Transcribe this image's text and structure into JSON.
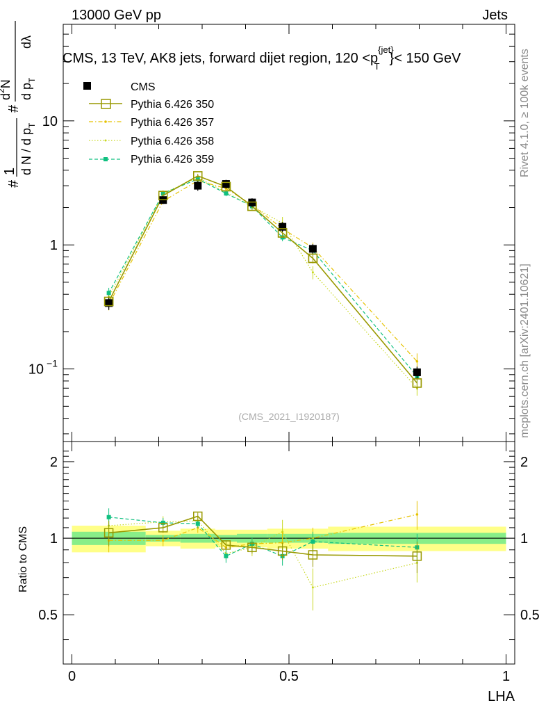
{
  "header": {
    "left": "13000 GeV pp",
    "right": "Jets",
    "title": "CMS, 13 TeV, AK8 jets, forward dijet region, 120 <p",
    "title_sup": "{jet}",
    "title_sub": "T",
    "title_end": "}< 150 GeV"
  },
  "side": {
    "rivet": "Rivet 4.1.0, ≥ 100k events",
    "mcplots": "mcplots.cern.ch [arXiv:2401.10621]"
  },
  "watermark": "(CMS_2021_I1920187)",
  "ylabel": {
    "hash1": "#",
    "one": "1",
    "dn": "d N / d p",
    "dn_sub": "T",
    "hash2": "#",
    "d2n": "d",
    "d2n_sup": "2",
    "d2n_n": "N",
    "dpt": "d p",
    "dpt_sub": "T",
    "dlam": "dλ"
  },
  "ratio_ylabel": "Ratio to CMS",
  "xlabel": "LHA",
  "colors": {
    "data": "#000000",
    "p350": "#999900",
    "p357": "#e6c200",
    "p358": "#c8d820",
    "p359": "#10c080",
    "band_outer": "#ffff88",
    "band_inner": "#88ee88"
  },
  "chart_data": {
    "type": "line",
    "log_y": true,
    "xlim": [
      -0.02,
      1.02
    ],
    "ylim": [
      0.026,
      60
    ],
    "ratio_ylim": [
      0.32,
      2.4
    ],
    "x_ticks": [
      {
        "v": 0,
        "label": "0"
      },
      {
        "v": 0.5,
        "label": "0.5"
      },
      {
        "v": 1,
        "label": "1"
      }
    ],
    "y_ticks": [
      {
        "v": 10,
        "label": "10",
        "sup": ""
      },
      {
        "v": 1,
        "label": "1",
        "sup": ""
      },
      {
        "v": 0.1,
        "label": "10",
        "sup": "−1"
      }
    ],
    "ratio_ticks": [
      {
        "v": 2,
        "label": "2"
      },
      {
        "v": 1,
        "label": "1"
      },
      {
        "v": 0.5,
        "label": "0.5"
      }
    ],
    "bin_edges": [
      0,
      0.17,
      0.25,
      0.33,
      0.38,
      0.45,
      0.52,
      0.59,
      1.0
    ],
    "x": [
      0.085,
      0.21,
      0.29,
      0.355,
      0.415,
      0.485,
      0.555,
      0.795
    ],
    "data": {
      "name": "CMS",
      "values": [
        0.34,
        2.3,
        3.0,
        3.1,
        2.2,
        1.4,
        0.93,
        0.094
      ],
      "rel_err_outer": [
        0.12,
        0.07,
        0.09,
        0.08,
        0.08,
        0.09,
        0.09,
        0.11
      ],
      "rel_err_inner": [
        0.06,
        0.03,
        0.04,
        0.03,
        0.04,
        0.04,
        0.04,
        0.05
      ]
    },
    "series": [
      {
        "name": "Pythia 6.426 350",
        "key": "p350",
        "values": [
          0.35,
          2.5,
          3.6,
          2.95,
          2.05,
          1.25,
          0.78,
          0.077
        ],
        "ratio": [
          1.05,
          1.1,
          1.22,
          0.94,
          0.92,
          0.89,
          0.86,
          0.85
        ],
        "ratio_err": [
          0.12,
          0.05,
          0.04,
          0.04,
          0.05,
          0.07,
          0.09,
          0.12
        ]
      },
      {
        "name": "Pythia 6.426 357",
        "key": "p357",
        "values": [
          0.33,
          2.25,
          3.3,
          2.85,
          2.1,
          1.35,
          0.95,
          0.115
        ],
        "ratio": [
          0.98,
          0.98,
          1.1,
          0.92,
          0.95,
          0.96,
          1.0,
          1.24
        ],
        "ratio_err": [
          0.1,
          0.05,
          0.05,
          0.04,
          0.06,
          0.1,
          0.1,
          0.16
        ]
      },
      {
        "name": "Pythia 6.426 358",
        "key": "p358",
        "values": [
          0.38,
          2.6,
          3.5,
          2.65,
          2.05,
          1.5,
          0.6,
          0.07
        ],
        "ratio": [
          1.12,
          1.16,
          1.17,
          0.87,
          0.92,
          1.06,
          0.64,
          0.8
        ],
        "ratio_err": [
          0.1,
          0.06,
          0.05,
          0.05,
          0.07,
          0.12,
          0.12,
          0.13
        ]
      },
      {
        "name": "Pythia 6.426 359",
        "key": "p359",
        "values": [
          0.41,
          2.6,
          3.4,
          2.6,
          2.05,
          1.15,
          0.9,
          0.087
        ],
        "ratio": [
          1.21,
          1.15,
          1.14,
          0.85,
          0.95,
          0.85,
          0.97,
          0.92
        ],
        "ratio_err": [
          0.1,
          0.05,
          0.04,
          0.05,
          0.06,
          0.07,
          0.09,
          0.12
        ]
      }
    ]
  }
}
